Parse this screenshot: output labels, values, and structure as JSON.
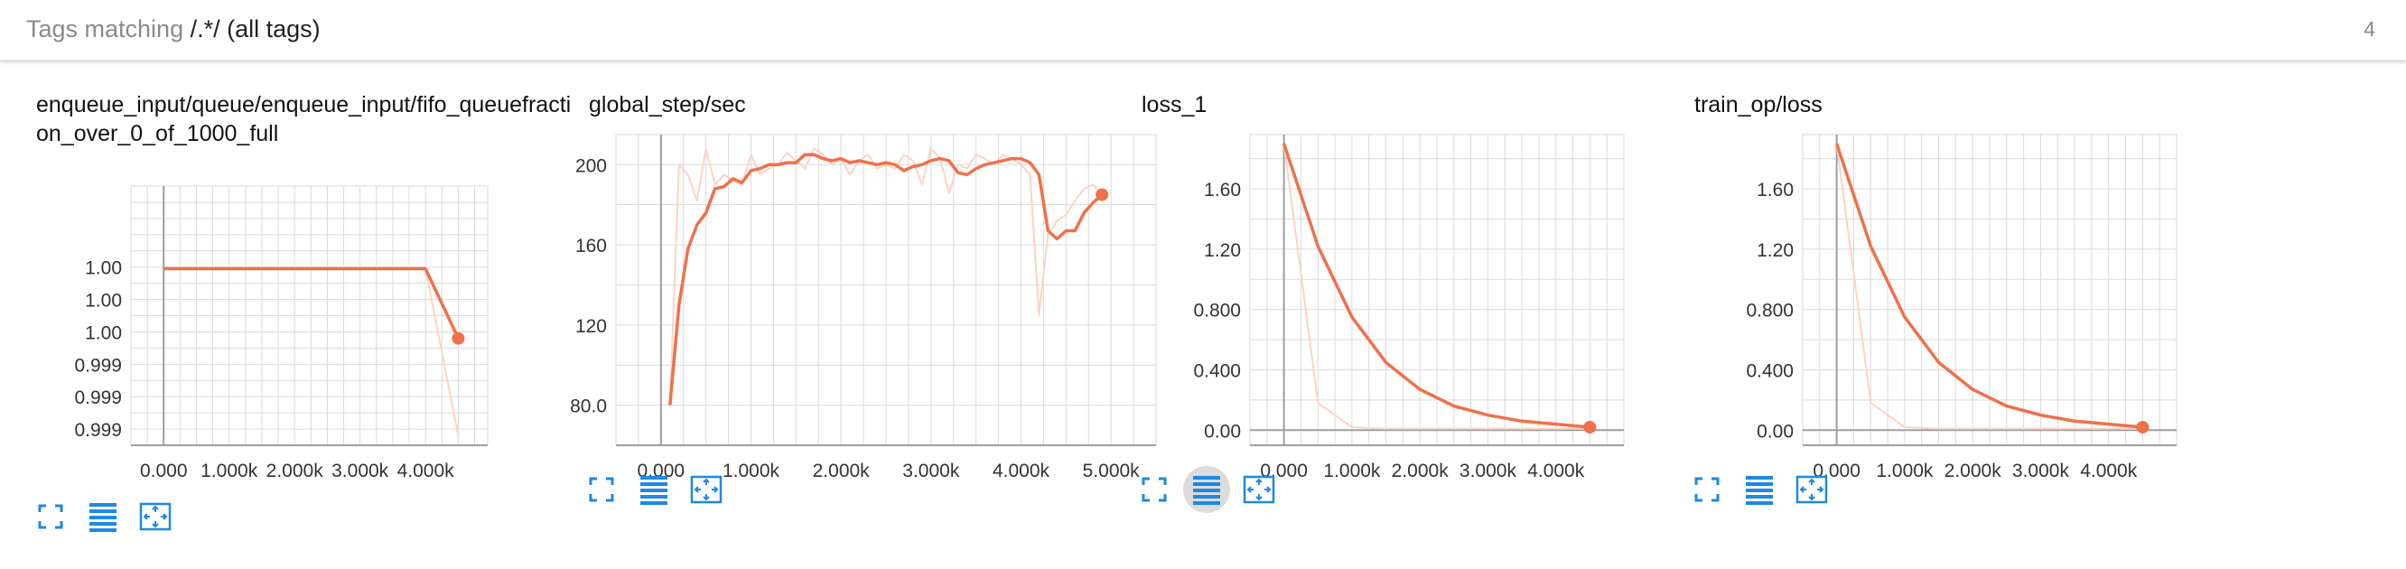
{
  "header": {
    "prefix": "Tags matching",
    "regex": "/.*/",
    "tag_desc": "(all tags)",
    "count": "4"
  },
  "colors": {
    "accent": "#f0704a",
    "accent_light": "#fbd4c7",
    "grid": "#dadada",
    "axis": "#9e9e9e",
    "button": "#1e88e5"
  },
  "cards": [
    {
      "title": "enqueue_input/queue/enqueue_input/fifo_queuefraction_over_0_of_1000_full",
      "buttons": [
        {
          "name": "fullscreen-icon",
          "active": false
        },
        {
          "name": "log-scale-icon",
          "active": false
        },
        {
          "name": "fit-domain-icon",
          "active": false
        }
      ]
    },
    {
      "title": "global_step/sec",
      "buttons": [
        {
          "name": "fullscreen-icon",
          "active": false
        },
        {
          "name": "log-scale-icon",
          "active": false
        },
        {
          "name": "fit-domain-icon",
          "active": false
        }
      ]
    },
    {
      "title": "loss_1",
      "buttons": [
        {
          "name": "fullscreen-icon",
          "active": false
        },
        {
          "name": "log-scale-icon",
          "active": true
        },
        {
          "name": "fit-domain-icon",
          "active": false
        }
      ]
    },
    {
      "title": "train_op/loss",
      "buttons": [
        {
          "name": "fullscreen-icon",
          "active": false
        },
        {
          "name": "log-scale-icon",
          "active": false
        },
        {
          "name": "fit-domain-icon",
          "active": false
        }
      ]
    }
  ],
  "chart_data": [
    {
      "type": "line",
      "title": "enqueue_input/queue/enqueue_input/fifo_queuefraction_over_0_of_1000_full",
      "xlabel": "",
      "ylabel": "",
      "xlim": [
        -500,
        4950
      ],
      "ylim": [
        0,
        8
      ],
      "x_ticks": [
        0,
        1000,
        2000,
        3000,
        4000
      ],
      "x_tick_labels": [
        "0.000",
        "1.000k",
        "2.000k",
        "3.000k",
        "4.000k"
      ],
      "y_ticks": [
        0.5,
        1.5,
        2.5,
        3.5,
        4.5,
        5.5
      ],
      "y_tick_labels": [
        "0.999",
        "0.999",
        "0.999",
        "1.00",
        "1.00",
        "1.00"
      ],
      "grid": true,
      "series": [
        {
          "style": "raw",
          "x": [
            0,
            4000,
            4500
          ],
          "y": [
            5.45,
            5.45,
            0.3
          ]
        },
        {
          "style": "smoothed",
          "x": [
            0,
            4000,
            4500
          ],
          "y": [
            5.45,
            5.45,
            3.3
          ]
        }
      ]
    },
    {
      "type": "line",
      "title": "global_step/sec",
      "xlabel": "",
      "ylabel": "",
      "xlim": [
        -500,
        5500
      ],
      "ylim": [
        60,
        215
      ],
      "x_ticks": [
        0,
        1000,
        2000,
        3000,
        4000,
        5000
      ],
      "x_tick_labels": [
        "0.000",
        "1.000k",
        "2.000k",
        "3.000k",
        "4.000k",
        "5.000k"
      ],
      "y_ticks": [
        80,
        120,
        160,
        200
      ],
      "y_tick_labels": [
        "80.0",
        "120",
        "160",
        "200"
      ],
      "grid": true,
      "series": [
        {
          "style": "raw",
          "x": [
            100,
            200,
            300,
            400,
            500,
            600,
            700,
            800,
            900,
            1000,
            1100,
            1200,
            1300,
            1400,
            1500,
            1600,
            1700,
            1800,
            1900,
            2000,
            2100,
            2200,
            2300,
            2400,
            2500,
            2600,
            2700,
            2800,
            2900,
            3000,
            3100,
            3200,
            3300,
            3400,
            3500,
            3600,
            3700,
            3800,
            3900,
            4000,
            4100,
            4200,
            4300,
            4400,
            4500,
            4600,
            4700,
            4800,
            4900
          ],
          "y": [
            80,
            200,
            195,
            182,
            208,
            190,
            195,
            192,
            190,
            205,
            195,
            198,
            200,
            206,
            202,
            198,
            208,
            205,
            200,
            203,
            195,
            202,
            205,
            198,
            200,
            198,
            205,
            202,
            190,
            208,
            203,
            186,
            200,
            198,
            205,
            203,
            200,
            205,
            203,
            200,
            195,
            125,
            165,
            172,
            175,
            182,
            188,
            190,
            185
          ]
        },
        {
          "style": "smoothed",
          "x": [
            100,
            200,
            300,
            400,
            500,
            600,
            700,
            800,
            900,
            1000,
            1100,
            1200,
            1300,
            1400,
            1500,
            1600,
            1700,
            1800,
            1900,
            2000,
            2100,
            2200,
            2300,
            2400,
            2500,
            2600,
            2700,
            2800,
            2900,
            3000,
            3100,
            3200,
            3300,
            3400,
            3500,
            3600,
            3700,
            3800,
            3900,
            4000,
            4100,
            4200,
            4300,
            4400,
            4500,
            4600,
            4700,
            4800,
            4900
          ],
          "y": [
            80,
            130,
            158,
            170,
            176,
            188,
            189,
            193,
            191,
            197,
            198,
            200,
            200,
            201,
            201,
            205,
            205,
            203,
            202,
            203,
            201,
            202,
            201,
            200,
            201,
            200,
            197,
            199,
            200,
            202,
            203,
            202,
            196,
            195,
            198,
            200,
            201,
            202,
            203,
            203,
            201,
            195,
            167,
            163,
            167,
            167,
            176,
            181,
            185
          ]
        }
      ]
    },
    {
      "type": "line",
      "title": "loss_1",
      "xlabel": "",
      "ylabel": "",
      "xlim": [
        -500,
        5000
      ],
      "ylim": [
        -0.1,
        1.96
      ],
      "x_ticks": [
        0,
        1000,
        2000,
        3000,
        4000
      ],
      "x_tick_labels": [
        "0.000",
        "1.000k",
        "2.000k",
        "3.000k",
        "4.000k"
      ],
      "y_ticks": [
        0,
        0.4,
        0.8,
        1.2,
        1.6
      ],
      "y_tick_labels": [
        "0.00",
        "0.400",
        "0.800",
        "1.20",
        "1.60"
      ],
      "grid": true,
      "series": [
        {
          "style": "raw",
          "x": [
            0,
            500,
            1000,
            1500,
            2000,
            2500,
            3000,
            3500,
            4000,
            4500
          ],
          "y": [
            1.9,
            0.18,
            0.02,
            0.01,
            0.01,
            0.01,
            0.01,
            0.01,
            0.01,
            0.01
          ]
        },
        {
          "style": "smoothed",
          "x": [
            0,
            500,
            1000,
            1500,
            2000,
            2500,
            3000,
            3500,
            4000,
            4500
          ],
          "y": [
            1.9,
            1.22,
            0.75,
            0.45,
            0.27,
            0.16,
            0.1,
            0.06,
            0.04,
            0.02
          ]
        }
      ]
    },
    {
      "type": "line",
      "title": "train_op/loss",
      "xlabel": "",
      "ylabel": "",
      "xlim": [
        -500,
        5000
      ],
      "ylim": [
        -0.1,
        1.96
      ],
      "x_ticks": [
        0,
        1000,
        2000,
        3000,
        4000
      ],
      "x_tick_labels": [
        "0.000",
        "1.000k",
        "2.000k",
        "3.000k",
        "4.000k"
      ],
      "y_ticks": [
        0,
        0.4,
        0.8,
        1.2,
        1.6
      ],
      "y_tick_labels": [
        "0.00",
        "0.400",
        "0.800",
        "1.20",
        "1.60"
      ],
      "grid": true,
      "series": [
        {
          "style": "raw",
          "x": [
            0,
            500,
            1000,
            1500,
            2000,
            2500,
            3000,
            3500,
            4000,
            4500
          ],
          "y": [
            1.9,
            0.18,
            0.02,
            0.01,
            0.01,
            0.01,
            0.01,
            0.01,
            0.01,
            0.01
          ]
        },
        {
          "style": "smoothed",
          "x": [
            0,
            500,
            1000,
            1500,
            2000,
            2500,
            3000,
            3500,
            4000,
            4500
          ],
          "y": [
            1.9,
            1.22,
            0.75,
            0.45,
            0.27,
            0.16,
            0.1,
            0.06,
            0.04,
            0.02
          ]
        }
      ]
    }
  ]
}
